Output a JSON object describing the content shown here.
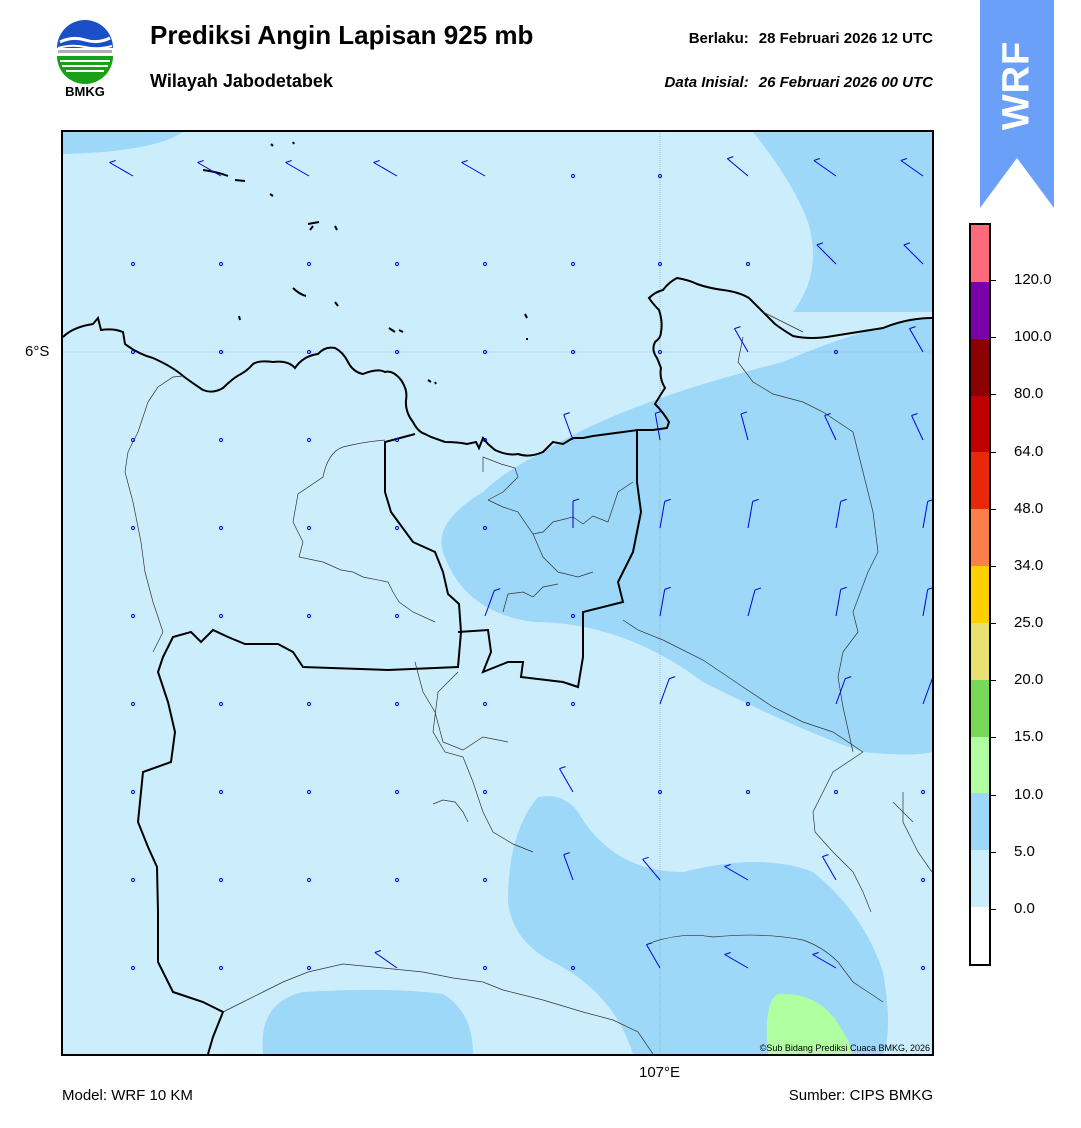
{
  "header": {
    "logo_text": "BMKG",
    "title": "Prediksi Angin Lapisan 925 mb",
    "subtitle": "Wilayah Jabodetabek",
    "valid_label": "Berlaku:",
    "valid_time": "28 Februari 2026 12 UTC",
    "initial_label": "Data Inisial:",
    "initial_time": "26 Februari 2026 00 UTC"
  },
  "badge": {
    "text": "WRF",
    "color": "#6aa0f8"
  },
  "map": {
    "lat_label": "6°S",
    "lon_label": "107°E",
    "copyright": "©Sub Bidang Prediksi Cuaca BMKG, 2026"
  },
  "colorbar": {
    "labels": [
      "120.0",
      "100.0",
      "80.0",
      "64.0",
      "48.0",
      "34.0",
      "25.0",
      "20.0",
      "15.0",
      "10.0",
      "5.0",
      "0.0"
    ],
    "colors": [
      "#ff6a7a",
      "#7a00a8",
      "#8b0000",
      "#c00000",
      "#e82808",
      "#ff7f4a",
      "#ffd000",
      "#e8e070",
      "#78d858",
      "#b0ffa0",
      "#9ed8f8",
      "#cceefc",
      "#ffffff"
    ]
  },
  "fill_colors": {
    "light": "#cceefc",
    "medium": "#9ed8f8",
    "green": "#b0ffa0",
    "barb": "#0000e0"
  },
  "footer": {
    "model": "Model: WRF 10 KM",
    "source": "Sumber: CIPS BMKG"
  }
}
